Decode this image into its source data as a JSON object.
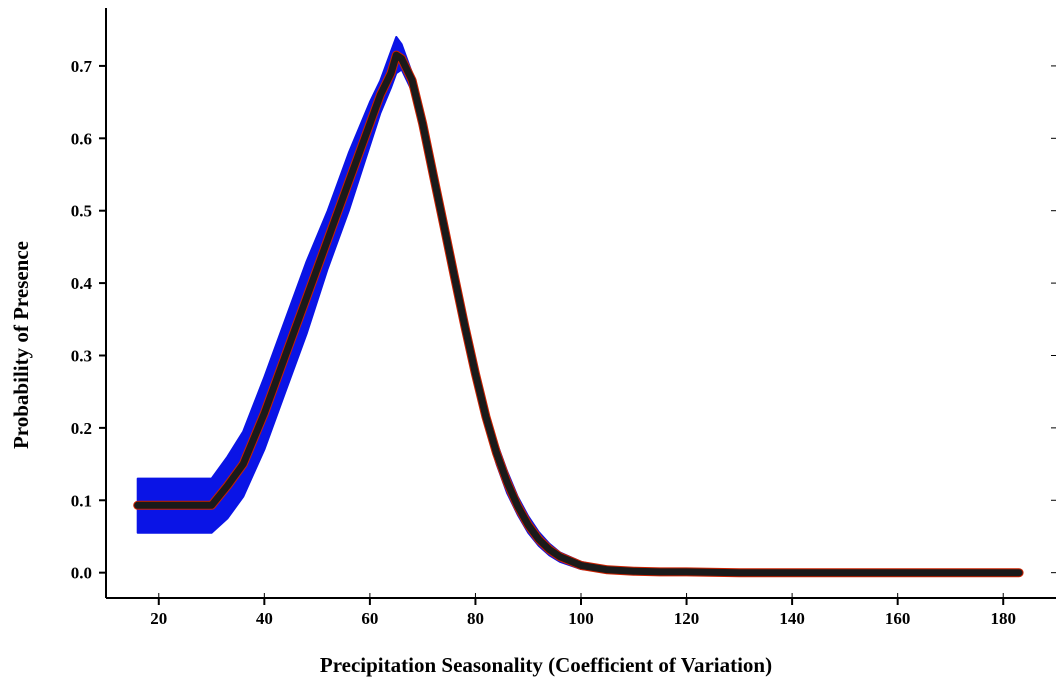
{
  "chart_data": {
    "type": "line",
    "title": "",
    "xlabel": "Precipitation Seasonality (Coefficient of Variation)",
    "ylabel": "Probability of Presence",
    "xlim": [
      10,
      190
    ],
    "ylim": [
      -0.035,
      0.78
    ],
    "x_ticks": [
      20,
      40,
      60,
      80,
      100,
      120,
      140,
      160,
      180
    ],
    "y_ticks": [
      0.0,
      0.1,
      0.2,
      0.3,
      0.4,
      0.5,
      0.6,
      0.7
    ],
    "x_tick_labels": [
      "20",
      "40",
      "60",
      "80",
      "100",
      "120",
      "140",
      "160",
      "180"
    ],
    "y_tick_labels": [
      "0.0",
      "0.1",
      "0.2",
      "0.3",
      "0.4",
      "0.5",
      "0.6",
      "0.7"
    ],
    "grid": false,
    "legend": "none",
    "colors": {
      "mean_line": "#1a1a1a",
      "mean_line_edge": "#cc2200",
      "confidence_band": "#0a14e6",
      "axis": "#000000"
    },
    "series": [
      {
        "role": "mean",
        "x": [
          16,
          30,
          33,
          36,
          40,
          44,
          48,
          52,
          56,
          60,
          62,
          64,
          65,
          66,
          68,
          70,
          72,
          74,
          76,
          78,
          80,
          82,
          84,
          86,
          88,
          90,
          92,
          94,
          96,
          100,
          105,
          110,
          115,
          120,
          130,
          140,
          160,
          183
        ],
        "y": [
          0.093,
          0.093,
          0.12,
          0.15,
          0.22,
          0.3,
          0.38,
          0.46,
          0.54,
          0.62,
          0.66,
          0.69,
          0.715,
          0.71,
          0.68,
          0.62,
          0.55,
          0.48,
          0.41,
          0.34,
          0.275,
          0.215,
          0.165,
          0.125,
          0.092,
          0.066,
          0.046,
          0.032,
          0.022,
          0.01,
          0.004,
          0.002,
          0.001,
          0.001,
          0.0,
          0.0,
          0.0,
          0.0
        ]
      },
      {
        "role": "upper_bound",
        "x": [
          16,
          30,
          33,
          36,
          40,
          44,
          48,
          52,
          56,
          60,
          62,
          64,
          65,
          66,
          68,
          70,
          72,
          74,
          76,
          78,
          80,
          82,
          84,
          86,
          88,
          90,
          92,
          94,
          96,
          100,
          105,
          110,
          115,
          120,
          130,
          140,
          160,
          183
        ],
        "y": [
          0.13,
          0.13,
          0.16,
          0.195,
          0.27,
          0.35,
          0.43,
          0.5,
          0.58,
          0.65,
          0.68,
          0.72,
          0.74,
          0.73,
          0.69,
          0.635,
          0.565,
          0.495,
          0.425,
          0.355,
          0.29,
          0.23,
          0.18,
          0.14,
          0.105,
          0.078,
          0.056,
          0.04,
          0.028,
          0.015,
          0.007,
          0.004,
          0.003,
          0.003,
          0.002,
          0.002,
          0.002,
          0.002
        ]
      },
      {
        "role": "lower_bound",
        "x": [
          16,
          30,
          33,
          36,
          40,
          44,
          48,
          52,
          56,
          60,
          62,
          64,
          65,
          66,
          68,
          70,
          72,
          74,
          76,
          78,
          80,
          82,
          84,
          86,
          88,
          90,
          92,
          94,
          96,
          100,
          105,
          110,
          115,
          120,
          130,
          140,
          160,
          183
        ],
        "y": [
          0.055,
          0.055,
          0.075,
          0.105,
          0.17,
          0.25,
          0.33,
          0.42,
          0.5,
          0.59,
          0.635,
          0.67,
          0.69,
          0.695,
          0.665,
          0.605,
          0.535,
          0.465,
          0.395,
          0.325,
          0.26,
          0.2,
          0.15,
          0.11,
          0.08,
          0.055,
          0.037,
          0.024,
          0.015,
          0.005,
          0.001,
          0.0,
          0.0,
          0.0,
          0.0,
          0.0,
          0.0,
          0.0
        ]
      }
    ]
  }
}
